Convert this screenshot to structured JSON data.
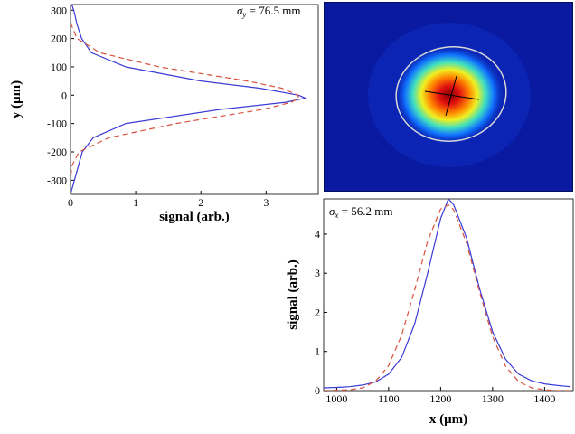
{
  "chart_data": [
    {
      "type": "line",
      "orientation": "horizontal",
      "annotation": {
        "symbol": "σ",
        "subscript": "y",
        "text": " = 76.5 mm"
      },
      "xlabel": "signal (arb.)",
      "ylabel": "y (μm)",
      "y": [
        320,
        300,
        250,
        200,
        150,
        100,
        50,
        25,
        0,
        -10,
        -25,
        -50,
        -100,
        -150,
        -200,
        -250,
        -300,
        -350
      ],
      "series": [
        {
          "color": "#3b3bd6",
          "line_style": "solid",
          "values": [
            0.02,
            0.05,
            0.1,
            0.17,
            0.32,
            0.85,
            2.0,
            2.9,
            3.5,
            3.6,
            3.3,
            2.3,
            0.85,
            0.35,
            0.18,
            0.12,
            0.06,
            0.0
          ]
        },
        {
          "color": "#d9503f",
          "line_style": "dashed",
          "values": [
            0.0,
            0.0,
            0.01,
            0.1,
            0.45,
            1.36,
            2.71,
            3.24,
            3.49,
            3.5,
            3.39,
            2.95,
            1.62,
            0.59,
            0.13,
            0.02,
            0.0,
            0.0
          ]
        }
      ],
      "xlim": [
        0,
        3.8
      ],
      "xticks": [
        0,
        1,
        2,
        3
      ],
      "ylim": [
        -350,
        320
      ],
      "yticks": [
        -300,
        -200,
        -100,
        0,
        100,
        200,
        300
      ]
    },
    {
      "type": "line",
      "orientation": "vertical",
      "annotation": {
        "symbol": "σ",
        "subscript": "x",
        "text": " = 56.2 mm"
      },
      "xlabel": "x (μm)",
      "ylabel": "signal (arb.)",
      "x": [
        975,
        1000,
        1025,
        1050,
        1075,
        1100,
        1125,
        1150,
        1175,
        1200,
        1215,
        1225,
        1250,
        1275,
        1300,
        1325,
        1350,
        1375,
        1400,
        1425,
        1450
      ],
      "series": [
        {
          "color": "#3b3bd6",
          "line_style": "solid",
          "values": [
            0.07,
            0.08,
            0.1,
            0.14,
            0.22,
            0.42,
            0.85,
            1.7,
            3.0,
            4.4,
            4.9,
            4.75,
            3.9,
            2.6,
            1.5,
            0.8,
            0.42,
            0.25,
            0.17,
            0.13,
            0.1
          ]
        },
        {
          "color": "#d9503f",
          "line_style": "dashed",
          "values": [
            0.0,
            0.01,
            0.02,
            0.07,
            0.24,
            0.64,
            1.42,
            2.57,
            3.82,
            4.64,
            4.75,
            4.62,
            3.77,
            2.52,
            1.38,
            0.62,
            0.23,
            0.07,
            0.02,
            0.0,
            0.0
          ]
        }
      ],
      "xlim": [
        975,
        1455
      ],
      "xticks": [
        1000,
        1100,
        1200,
        1300,
        1400
      ],
      "ylim": [
        0,
        4.9
      ],
      "yticks": [
        0,
        1,
        2,
        3,
        4
      ]
    }
  ]
}
